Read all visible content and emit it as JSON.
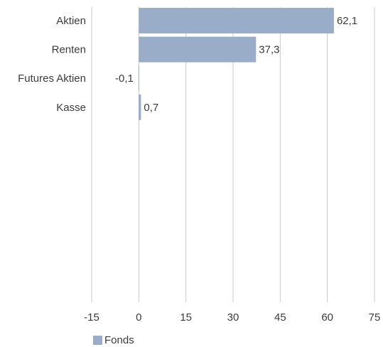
{
  "chart_data": {
    "type": "bar",
    "orientation": "horizontal",
    "categories": [
      "Aktien",
      "Renten",
      "Futures Aktien",
      "Kasse"
    ],
    "series": [
      {
        "name": "Fonds",
        "values": [
          62.1,
          37.3,
          -0.1,
          0.7
        ],
        "color": "#99adc9"
      }
    ],
    "data_labels": [
      "62,1",
      "37,3",
      "-0,1",
      "0,7"
    ],
    "xlim": [
      -15,
      75
    ],
    "xticks": [
      -15,
      0,
      15,
      30,
      45,
      60,
      75
    ],
    "xtick_labels": [
      "-15",
      "0",
      "15",
      "30",
      "45",
      "60",
      "75"
    ],
    "grid": "vertical",
    "legend_position": "bottom-left"
  }
}
